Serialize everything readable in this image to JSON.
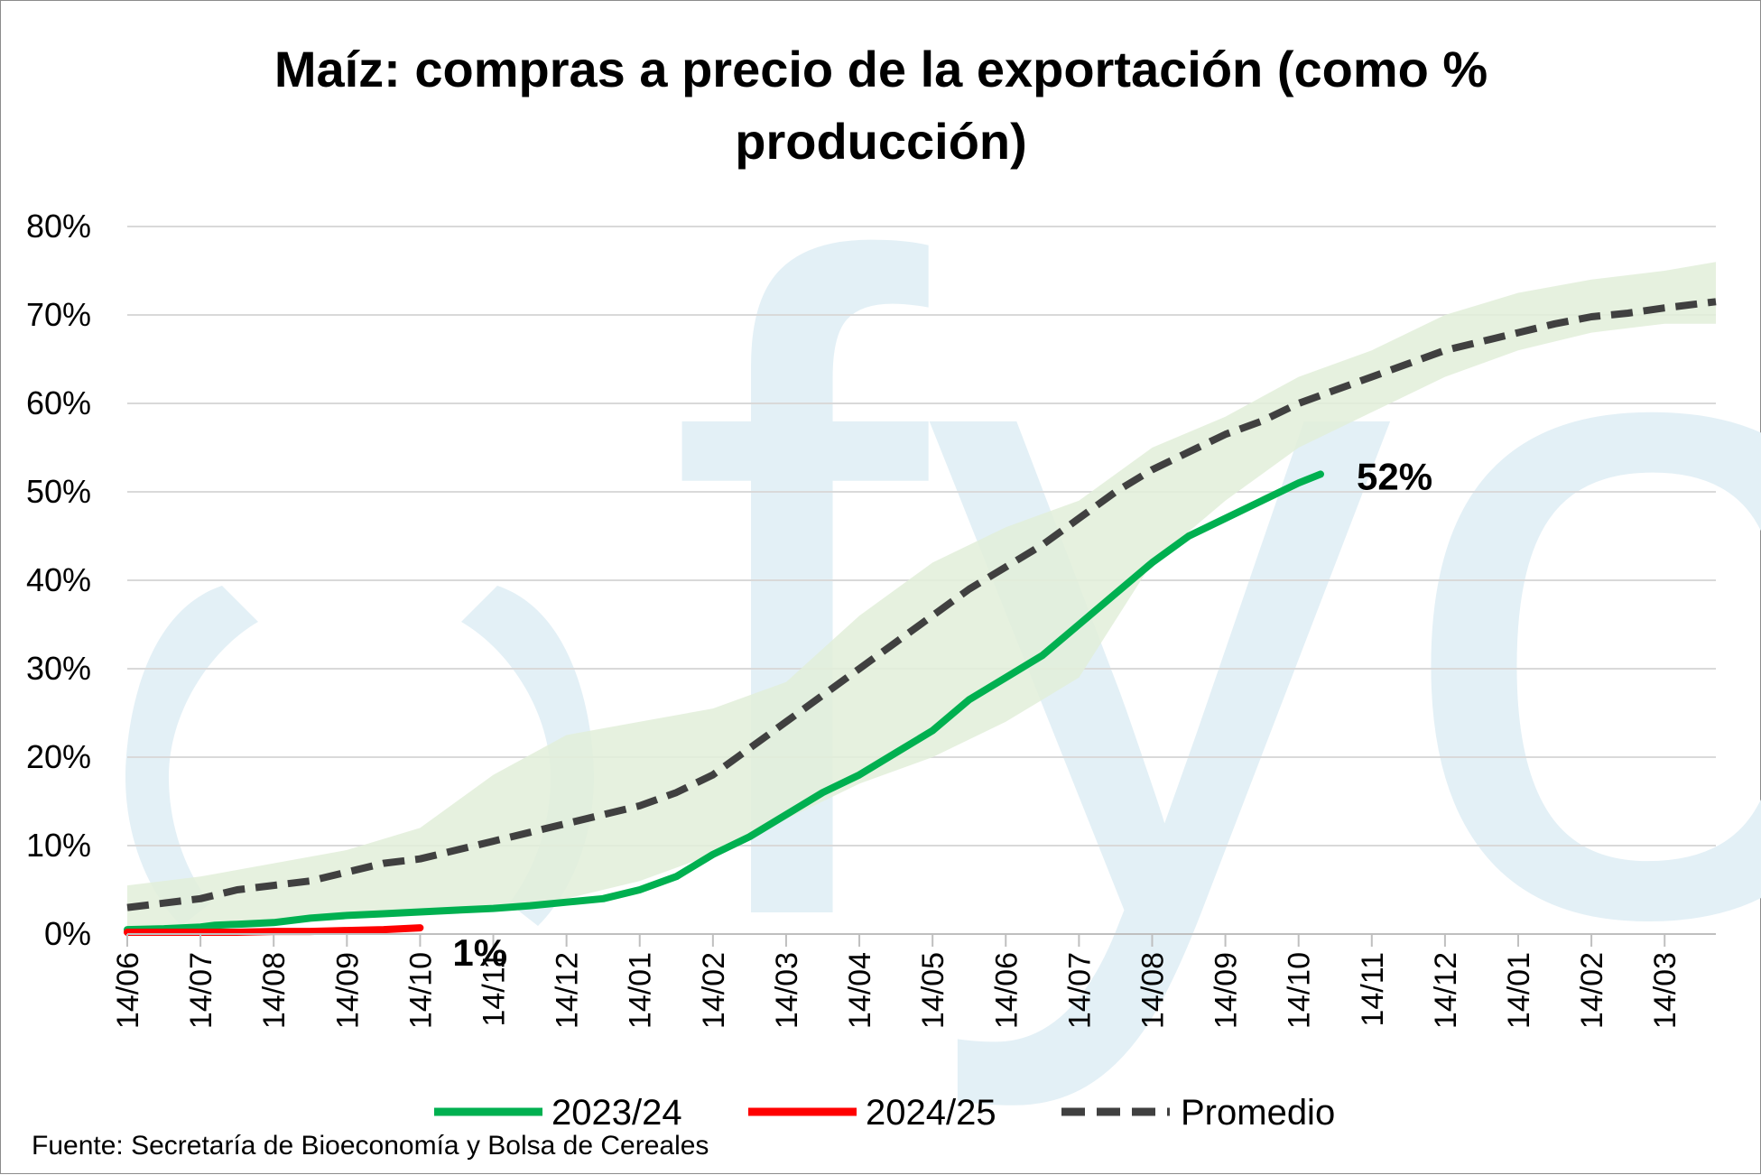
{
  "chart_data": {
    "type": "line",
    "title_lines": [
      "Maíz: compras a precio de la exportación (como %",
      "producción)"
    ],
    "y_ticks": [
      "0%",
      "10%",
      "20%",
      "30%",
      "40%",
      "50%",
      "60%",
      "70%",
      "80%"
    ],
    "ylim": [
      0,
      80
    ],
    "x_ticks": [
      "14/06",
      "14/07",
      "14/08",
      "14/09",
      "14/10",
      "14/11",
      "14/12",
      "14/01",
      "14/02",
      "14/03",
      "14/04",
      "14/05",
      "14/06",
      "14/07",
      "14/08",
      "14/09",
      "14/10",
      "14/11",
      "14/12",
      "14/01",
      "14/02",
      "14/03"
    ],
    "x_unit_note": "x values are months counted from the 14/06 tick",
    "xlim": [
      0,
      21.7
    ],
    "grid": true,
    "legend_position": "bottom",
    "series": [
      {
        "name": "2023/24",
        "color": "#00b050",
        "style": "solid",
        "x": [
          0,
          0.5,
          1,
          1.2,
          1.5,
          2,
          2.5,
          3,
          3.5,
          4,
          4.5,
          5,
          5.5,
          6,
          6.5,
          7,
          7.5,
          8,
          8.5,
          9,
          9.5,
          10,
          10.5,
          11,
          11.5,
          12,
          12.5,
          13,
          13.5,
          14,
          14.5,
          15,
          15.5,
          16,
          16.3
        ],
        "values": [
          0.5,
          0.6,
          0.8,
          1.0,
          1.1,
          1.3,
          1.8,
          2.1,
          2.3,
          2.5,
          2.7,
          2.9,
          3.2,
          3.6,
          4.0,
          5.0,
          6.5,
          9.0,
          11.0,
          13.5,
          16.0,
          18.0,
          20.5,
          23.0,
          26.5,
          29.0,
          31.5,
          35.0,
          38.5,
          42.0,
          45.0,
          47.0,
          49.0,
          51.0,
          52.0
        ],
        "end_label": "52%"
      },
      {
        "name": "2024/25",
        "color": "#ff0000",
        "style": "solid",
        "x": [
          0,
          0.5,
          1,
          1.5,
          2,
          2.5,
          3,
          3.5,
          4
        ],
        "values": [
          0.2,
          0.2,
          0.2,
          0.2,
          0.3,
          0.3,
          0.4,
          0.5,
          0.7
        ],
        "end_label": "1%"
      },
      {
        "name": "Promedio",
        "color": "#404040",
        "style": "dashed",
        "x": [
          0,
          0.5,
          1,
          1.5,
          2,
          2.5,
          3,
          3.5,
          4,
          4.5,
          5,
          5.5,
          6,
          6.5,
          7,
          7.5,
          8,
          8.5,
          9,
          9.5,
          10,
          10.5,
          11,
          11.5,
          12,
          12.5,
          13,
          13.5,
          14,
          14.5,
          15,
          15.5,
          16,
          16.5,
          17,
          17.5,
          18,
          18.5,
          19,
          19.5,
          20,
          20.5,
          21,
          21.7
        ],
        "values": [
          3.0,
          3.5,
          4.0,
          5.0,
          5.5,
          6.0,
          7.0,
          8.0,
          8.5,
          9.5,
          10.5,
          11.5,
          12.5,
          13.5,
          14.5,
          16.0,
          18.0,
          21.0,
          24.0,
          27.0,
          30.0,
          33.0,
          36.0,
          39.0,
          41.5,
          44.0,
          47.0,
          50.0,
          52.5,
          54.5,
          56.5,
          58.0,
          60.0,
          61.5,
          63.0,
          64.5,
          66.0,
          67.0,
          68.0,
          69.0,
          69.8,
          70.2,
          70.8,
          71.5
        ]
      }
    ],
    "band": {
      "color": "#e2efd9",
      "x": [
        0,
        1,
        2,
        3,
        4,
        5,
        6,
        7,
        8,
        9,
        10,
        11,
        12,
        13,
        14,
        15,
        16,
        17,
        18,
        19,
        20,
        21,
        21.7
      ],
      "lower": [
        0.5,
        1.0,
        1.5,
        2.0,
        2.5,
        3.0,
        4.0,
        6.0,
        9.0,
        13.0,
        17.0,
        20.0,
        24.0,
        29.0,
        42.0,
        49.0,
        55.0,
        59.0,
        63.0,
        66.0,
        68.0,
        69.0,
        69.0
      ],
      "upper": [
        5.5,
        6.5,
        8.0,
        9.5,
        12.0,
        18.0,
        22.5,
        24.0,
        25.5,
        28.5,
        36.0,
        42.0,
        46.0,
        49.0,
        55.0,
        58.5,
        63.0,
        66.0,
        70.0,
        72.5,
        74.0,
        75.0,
        76.0
      ]
    }
  },
  "legend": [
    {
      "label": "2023/24",
      "color": "#00b050",
      "style": "solid"
    },
    {
      "label": "2024/25",
      "color": "#ff0000",
      "style": "solid"
    },
    {
      "label": "Promedio",
      "color": "#404040",
      "style": "dashed"
    }
  ],
  "source": "Fuente: Secretaría de Bioeconomía y Bolsa de Cereales",
  "watermark": {
    "text": "fyo",
    "color": "#e3f0f6"
  }
}
